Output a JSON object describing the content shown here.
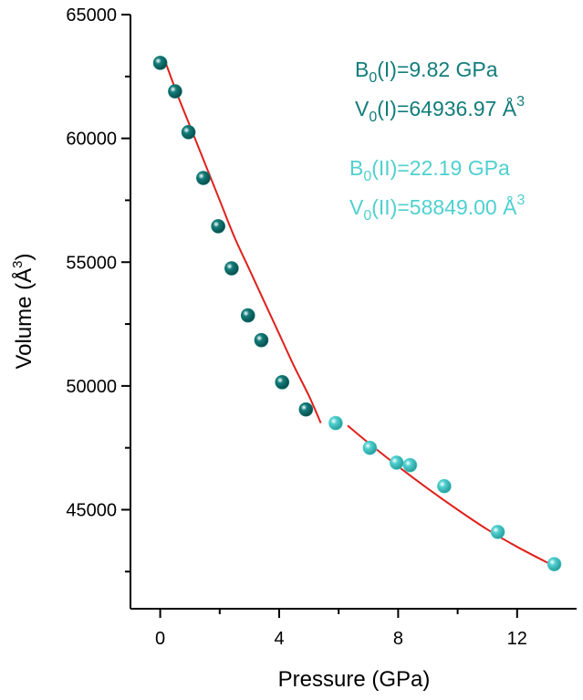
{
  "chart_data": {
    "type": "scatter",
    "xlabel": "Pressure (GPa)",
    "ylabel_main": "Volume (Å",
    "ylabel_sup": "3",
    "ylabel_close": ")",
    "xlim": [
      -1.0,
      14.0
    ],
    "ylim": [
      41000,
      65000
    ],
    "x_ticks": [
      0,
      4,
      8,
      12
    ],
    "x_minor_ticks": [
      2,
      6,
      10
    ],
    "y_ticks": [
      45000,
      50000,
      55000,
      60000,
      65000
    ],
    "y_minor_ticks": [
      42500,
      47500,
      52500,
      57500,
      62500
    ],
    "series": [
      {
        "color": "#127d7a",
        "points": [
          {
            "x": 0.0,
            "y": 63050
          },
          {
            "x": 0.5,
            "y": 61900
          },
          {
            "x": 0.95,
            "y": 60250
          },
          {
            "x": 1.45,
            "y": 58400
          },
          {
            "x": 1.95,
            "y": 56450
          },
          {
            "x": 2.4,
            "y": 54750
          },
          {
            "x": 2.95,
            "y": 52850
          },
          {
            "x": 3.4,
            "y": 51850
          },
          {
            "x": 4.1,
            "y": 50150
          },
          {
            "x": 4.9,
            "y": 49050
          }
        ]
      },
      {
        "color": "#4fd0cf",
        "points": [
          {
            "x": 5.9,
            "y": 48500
          },
          {
            "x": 7.05,
            "y": 47500
          },
          {
            "x": 7.95,
            "y": 46900
          },
          {
            "x": 8.4,
            "y": 46800
          },
          {
            "x": 9.55,
            "y": 45950
          },
          {
            "x": 11.35,
            "y": 44100
          },
          {
            "x": 13.25,
            "y": 42800
          }
        ]
      }
    ],
    "fit_color": "#e0201b",
    "fit_curves": [
      {
        "points": [
          [
            0.2,
            63000
          ],
          [
            0.6,
            61700
          ],
          [
            1.0,
            60500
          ],
          [
            1.5,
            59000
          ],
          [
            2.0,
            57500
          ],
          [
            2.5,
            56000
          ],
          [
            3.0,
            54700
          ],
          [
            3.5,
            53400
          ],
          [
            4.0,
            52100
          ],
          [
            4.5,
            50800
          ],
          [
            5.0,
            49600
          ],
          [
            5.4,
            48500
          ]
        ]
      },
      {
        "points": [
          [
            6.3,
            48400
          ],
          [
            7.0,
            47700
          ],
          [
            8.0,
            46750
          ],
          [
            9.0,
            45850
          ],
          [
            10.0,
            45000
          ],
          [
            11.0,
            44200
          ],
          [
            12.0,
            43500
          ],
          [
            13.2,
            42750
          ]
        ]
      }
    ],
    "annotations": [
      {
        "pre": "B",
        "sub": "0",
        "post": "(I)=9.82 GPa",
        "sup": "",
        "color": "#127d7a"
      },
      {
        "pre": "V",
        "sub": "0",
        "post": "(I)=64936.97 Å",
        "sup": "3",
        "color": "#127d7a"
      },
      {
        "pre": "B",
        "sub": "0",
        "post": "(II)=22.19 GPa",
        "sup": "",
        "color": "#4fd0cf"
      },
      {
        "pre": "V",
        "sub": "0",
        "post": "(II)=58849.00 Å",
        "sup": "3",
        "color": "#4fd0cf"
      }
    ]
  }
}
